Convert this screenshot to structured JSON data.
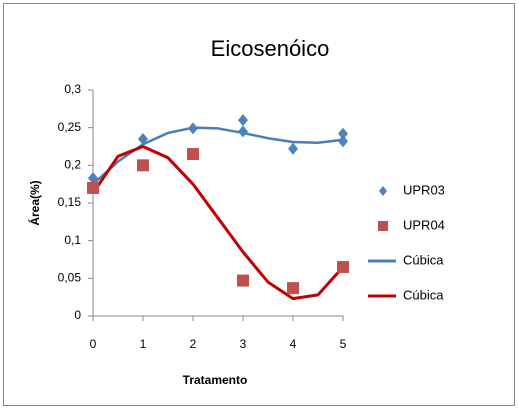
{
  "chart_data": {
    "type": "scatter",
    "title": "Eicosenóico",
    "xlabel": "Tratamento",
    "ylabel": "Área(%)",
    "xlim": [
      0,
      5
    ],
    "ylim": [
      0,
      0.3
    ],
    "xticks": [
      0,
      1,
      2,
      3,
      4,
      5
    ],
    "yticks": [
      0,
      {
        "value": 0.05,
        "label": "0,05"
      },
      {
        "value": 0.1,
        "label": "0,1"
      },
      {
        "value": 0.15,
        "label": "0,15"
      },
      {
        "value": 0.2,
        "label": "0,2"
      },
      {
        "value": 0.25,
        "label": "0,25"
      },
      {
        "value": 0.3,
        "label": "0,3"
      }
    ],
    "grid": false,
    "legend": "right",
    "series": [
      {
        "name": "UPR03",
        "color": "#4f81bd",
        "mode": "markers",
        "marker": "diamond",
        "x": [
          0,
          1,
          2,
          3,
          3,
          4,
          5,
          5
        ],
        "values": [
          0.183,
          0.235,
          0.249,
          0.26,
          0.245,
          0.222,
          0.242,
          0.232
        ]
      },
      {
        "name": "UPR04",
        "color": "#c0504d",
        "mode": "markers",
        "marker": "square",
        "x": [
          0,
          1,
          2,
          3,
          4,
          5
        ],
        "values": [
          0.17,
          0.2,
          0.215,
          0.047,
          0.037,
          0.065
        ]
      },
      {
        "name": "Cúbica",
        "color": "#4a7ebb",
        "mode": "line",
        "x": [
          0,
          0.5,
          1,
          1.5,
          2,
          2.5,
          3,
          3.5,
          4,
          4.5,
          5
        ],
        "values": [
          0.175,
          0.205,
          0.228,
          0.243,
          0.25,
          0.249,
          0.243,
          0.236,
          0.231,
          0.23,
          0.234
        ]
      },
      {
        "name": "Cúbica",
        "color": "#c00000",
        "mode": "line",
        "x": [
          0,
          0.5,
          1,
          1.5,
          2,
          2.5,
          3,
          3.5,
          4,
          4.5,
          5
        ],
        "values": [
          0.163,
          0.212,
          0.225,
          0.21,
          0.175,
          0.13,
          0.085,
          0.045,
          0.023,
          0.028,
          0.065
        ]
      }
    ]
  }
}
